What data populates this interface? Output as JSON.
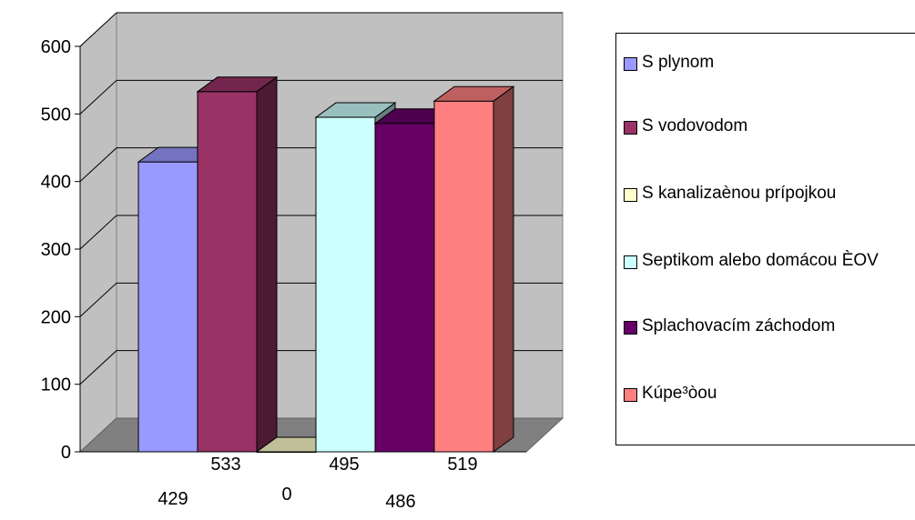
{
  "chart_data": {
    "type": "bar",
    "title": "",
    "xlabel": "",
    "ylabel": "",
    "ylim": [
      0,
      600
    ],
    "yticks": [
      "0",
      "100",
      "200",
      "300",
      "400",
      "500",
      "600"
    ],
    "grid": true,
    "legend_position": "right",
    "series": [
      {
        "name": "S plynom",
        "value": 429,
        "label": "429",
        "color": "#9999ff"
      },
      {
        "name": "S vodovodom",
        "value": 533,
        "label": "533",
        "color": "#993366"
      },
      {
        "name": "S kanalizaènou prípojkou",
        "value": 0,
        "label": "0",
        "color": "#ffffcc"
      },
      {
        "name": "Septikom alebo domácou ÈOV",
        "value": 495,
        "label": "495",
        "color": "#ccffff"
      },
      {
        "name": "Splachovacím záchodom",
        "value": 486,
        "label": "486",
        "color": "#660066"
      },
      {
        "name": "Kúpe³òou",
        "value": 519,
        "label": "519",
        "color": "#ff8080"
      }
    ]
  }
}
